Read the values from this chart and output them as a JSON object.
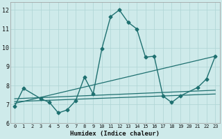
{
  "xlabel": "Humidex (Indice chaleur)",
  "xlim": [
    -0.5,
    23.5
  ],
  "ylim": [
    6,
    12.4
  ],
  "yticks": [
    6,
    7,
    8,
    9,
    10,
    11,
    12
  ],
  "xticks": [
    0,
    1,
    2,
    3,
    4,
    5,
    6,
    7,
    8,
    9,
    10,
    11,
    12,
    13,
    14,
    15,
    16,
    17,
    18,
    19,
    20,
    21,
    22,
    23
  ],
  "bg_color": "#ceeaea",
  "line_color": "#1e7070",
  "grid_color": "#aed4d4",
  "main_line": {
    "x": [
      0,
      1,
      3,
      4,
      5,
      6,
      7,
      8,
      9,
      10,
      11,
      12,
      13,
      14,
      15,
      16,
      17,
      18,
      19,
      21,
      22,
      23
    ],
    "y": [
      6.9,
      7.85,
      7.3,
      7.1,
      6.55,
      6.7,
      7.2,
      8.45,
      7.55,
      9.95,
      11.65,
      12.0,
      11.35,
      11.0,
      9.5,
      9.55,
      7.45,
      7.1,
      7.45,
      7.9,
      8.35,
      9.55
    ]
  },
  "trend_lines": [
    {
      "x0": 0,
      "y0": 7.3,
      "x1": 23,
      "y1": 7.75
    },
    {
      "x0": 0,
      "y0": 7.15,
      "x1": 23,
      "y1": 7.55
    },
    {
      "x0": 0,
      "y0": 7.05,
      "x1": 23,
      "y1": 9.55
    }
  ]
}
